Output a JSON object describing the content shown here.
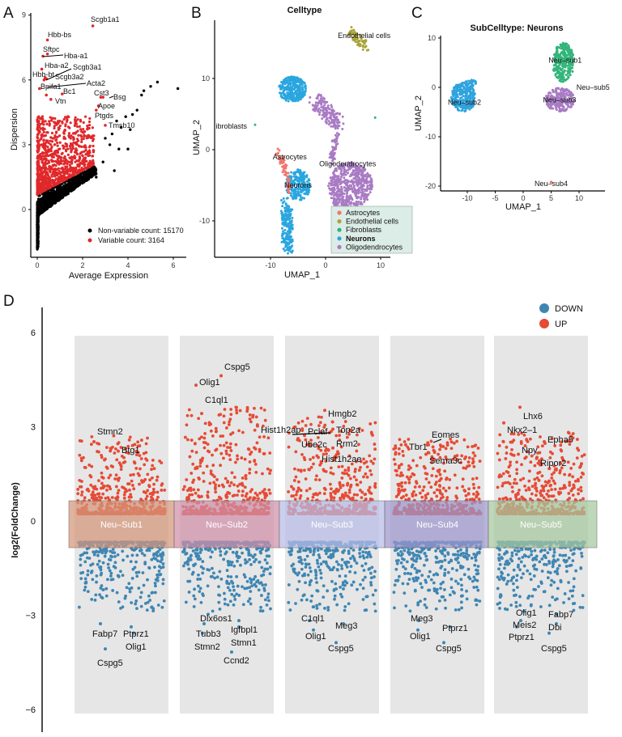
{
  "panels": {
    "a": "A",
    "b": "B",
    "c": "C",
    "d": "D"
  },
  "chart_data": [
    {
      "type": "scatter",
      "panel": "A",
      "xlabel": "Average Expression",
      "ylabel": "Dispersion",
      "xticks": [
        0,
        2,
        4,
        6
      ],
      "yticks": [
        0,
        3,
        6,
        9
      ],
      "xlim": [
        -0.3,
        6.6
      ],
      "ylim": [
        -2.2,
        9.3
      ],
      "legend": {
        "position": "bottom-right",
        "entries": [
          {
            "label": "Non-variable count: 15170",
            "color": "#000000"
          },
          {
            "label": "Variable count: 3164",
            "color": "#e0282b"
          }
        ]
      },
      "labeled_points": [
        {
          "gene": "Scgb1a1",
          "x": 2.45,
          "y": 8.5
        },
        {
          "gene": "Hbb-bs",
          "x": 0.45,
          "y": 7.85
        },
        {
          "gene": "Sftpc",
          "x": 0.45,
          "y": 7.2
        },
        {
          "gene": "Hba-a1",
          "x": 0.25,
          "y": 7.1
        },
        {
          "gene": "Hba-a2",
          "x": 0.2,
          "y": 6.5
        },
        {
          "gene": "Scgb3a1",
          "x": 0.4,
          "y": 6.05
        },
        {
          "gene": "Hbb-bt",
          "x": 0.3,
          "y": 6.0
        },
        {
          "gene": "Scgb3a2",
          "x": 0.35,
          "y": 6.1
        },
        {
          "gene": "Bpifa1",
          "x": 0.1,
          "y": 5.6
        },
        {
          "gene": "Acta2",
          "x": 0.4,
          "y": 5.3
        },
        {
          "gene": "Bc1",
          "x": 1.1,
          "y": 5.35
        },
        {
          "gene": "Vtn",
          "x": 0.6,
          "y": 5.1
        },
        {
          "gene": "Cst3",
          "x": 2.8,
          "y": 5.2
        },
        {
          "gene": "Bsg",
          "x": 2.9,
          "y": 5.2
        },
        {
          "gene": "Apoe",
          "x": 2.7,
          "y": 4.8
        },
        {
          "gene": "Ptgds",
          "x": 2.6,
          "y": 4.6
        },
        {
          "gene": "Tmsb10",
          "x": 3.0,
          "y": 3.9
        }
      ]
    },
    {
      "type": "scatter",
      "panel": "B",
      "title": "Celltype",
      "xlabel": "UMAP_1",
      "ylabel": "UMAP_2",
      "xticks": [
        -10,
        0,
        10
      ],
      "yticks": [
        -10,
        0,
        10
      ],
      "legend": {
        "position": "bottom-right",
        "entries": [
          {
            "label": "Astrocytes",
            "color": "#f0766d"
          },
          {
            "label": "Endothelial cells",
            "color": "#a9a33a"
          },
          {
            "label": "Fibroblasts",
            "color": "#2cb57f"
          },
          {
            "label": "Neurons",
            "color": "#2aa6df",
            "highlighted": true,
            "text_color": "#e8642c"
          },
          {
            "label": "Oligodendrocytes",
            "color": "#a97bc4"
          }
        ]
      },
      "cluster_labels": [
        {
          "label": "Endothelial cells",
          "x": 7,
          "y": 16
        },
        {
          "label": "Fibroblasts",
          "x": -17.5,
          "y": 3.3
        },
        {
          "label": "Astrocytes",
          "x": -6.5,
          "y": -1
        },
        {
          "label": "Oligodendrocytes",
          "x": 4,
          "y": -2
        },
        {
          "label": "Neurons",
          "x": -5,
          "y": -5
        }
      ]
    },
    {
      "type": "scatter",
      "panel": "C",
      "title": "SubCelltype: Neurons",
      "xlabel": "UMAP_1",
      "ylabel": "UMAP_2",
      "xticks": [
        -10,
        -5,
        0,
        5,
        10
      ],
      "yticks": [
        -20,
        -10,
        0,
        10
      ],
      "cluster_labels": [
        {
          "label": "Neu–sub1",
          "x": 7.5,
          "y": 5.5,
          "color": "#33b57a"
        },
        {
          "label": "Neu–sub2",
          "x": -10.5,
          "y": -3,
          "color": "#2fa3de"
        },
        {
          "label": "Neu–sub3",
          "x": 6.5,
          "y": -2.5,
          "color": "#a97bc4"
        },
        {
          "label": "Neu–sub4",
          "x": 5,
          "y": -19.5,
          "color": "#f0766d"
        },
        {
          "label": "Neu–sub5",
          "x": 12.5,
          "y": 0,
          "color": "#33b57a"
        }
      ]
    },
    {
      "type": "scatter",
      "panel": "D",
      "ylabel": "log2(FoldChange)",
      "yticks": [
        -6,
        -3,
        0,
        3,
        6
      ],
      "ylim": [
        -6.5,
        6.5
      ],
      "legend": {
        "position": "top-right",
        "entries": [
          {
            "label": "DOWN",
            "color": "#3f86b3"
          },
          {
            "label": "UP",
            "color": "#e64b35"
          }
        ]
      },
      "groups": [
        {
          "label": "Neu–Sub1",
          "band_color": "#d4967a",
          "up": [
            {
              "gene": "Stmn2",
              "value": 2.5
            },
            {
              "gene": "Btg1",
              "value": 2.2
            }
          ],
          "down": [
            {
              "gene": "Fabp7",
              "value": -3.3
            },
            {
              "gene": "Ptprz1",
              "value": -3.4
            },
            {
              "gene": "Olig1",
              "value": -3.6
            },
            {
              "gene": "Cspg5",
              "value": -4.1
            }
          ]
        },
        {
          "label": "Neu–Sub2",
          "band_color": "#cf8fa8",
          "up": [
            {
              "gene": "Cspg5",
              "value": 4.6
            },
            {
              "gene": "Olig1",
              "value": 4.3
            },
            {
              "gene": "C1ql1",
              "value": 3.4
            },
            {
              "gene": "Hist1h2ap",
              "value": 3.0
            }
          ],
          "down": [
            {
              "gene": "Dlx6os1",
              "value": -3.0
            },
            {
              "gene": "Tubb3",
              "value": -3.3
            },
            {
              "gene": "Igfbpl1",
              "value": -3.2
            },
            {
              "gene": "Stmn2",
              "value": -3.6
            },
            {
              "gene": "Stmn1",
              "value": -3.4
            },
            {
              "gene": "Ccnd2",
              "value": -4.2
            }
          ]
        },
        {
          "label": "Neu–Sub3",
          "band_color": "#b7bde6",
          "up": [
            {
              "gene": "Hmgb2",
              "value": 3.5
            },
            {
              "gene": "Pclaf",
              "value": 2.7
            },
            {
              "gene": "Top2a",
              "value": 2.9
            },
            {
              "gene": "Ube2c",
              "value": 2.6
            },
            {
              "gene": "Rrm2",
              "value": 2.3
            },
            {
              "gene": "Hist1h2ae",
              "value": 2.0
            }
          ],
          "down": [
            {
              "gene": "C1ql1",
              "value": -3.2
            },
            {
              "gene": "Meg3",
              "value": -3.3
            },
            {
              "gene": "Olig1",
              "value": -3.5
            },
            {
              "gene": "Cspg5",
              "value": -3.9
            }
          ]
        },
        {
          "label": "Neu–Sub4",
          "band_color": "#9c96cc",
          "up": [
            {
              "gene": "Eomes",
              "value": 2.4
            },
            {
              "gene": "Tbr1",
              "value": 2.4
            },
            {
              "gene": "Sema3c",
              "value": 2.1
            }
          ],
          "down": [
            {
              "gene": "Meg3",
              "value": -3.2
            },
            {
              "gene": "Ptprz1",
              "value": -3.4
            },
            {
              "gene": "Olig1",
              "value": -3.5
            },
            {
              "gene": "Cspg5",
              "value": -3.9
            }
          ]
        },
        {
          "label": "Neu–Sub5",
          "band_color": "#a6c89e",
          "up": [
            {
              "gene": "Lhx6",
              "value": 3.6
            },
            {
              "gene": "Nkx2–1",
              "value": 3.1
            },
            {
              "gene": "Epha5",
              "value": 2.5
            },
            {
              "gene": "Npy",
              "value": 2.1
            },
            {
              "gene": "Ripor2",
              "value": 2.0
            }
          ],
          "down": [
            {
              "gene": "Olig1",
              "value": -2.9
            },
            {
              "gene": "Fabp7",
              "value": -3.0
            },
            {
              "gene": "Meis2",
              "value": -3.2
            },
            {
              "gene": "Dbi",
              "value": -3.3
            },
            {
              "gene": "Ptprz1",
              "value": -3.4
            },
            {
              "gene": "Cspg5",
              "value": -3.6
            }
          ]
        }
      ]
    }
  ]
}
